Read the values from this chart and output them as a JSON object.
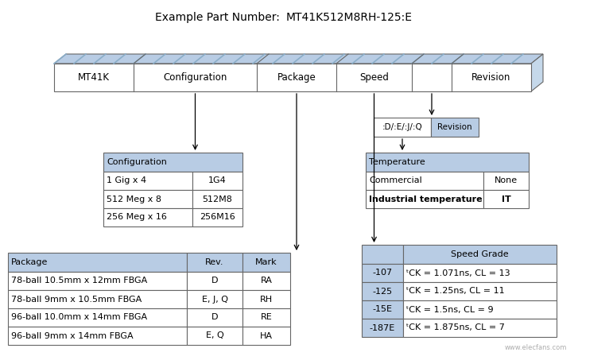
{
  "title_label": "Example Part Number:",
  "title_partnumber": "MT41K512M8RH-125:E",
  "bg_color": "#ffffff",
  "header_bg": "#b8cce4",
  "cell_bg": "#ffffff",
  "border_color": "#666666",
  "main_box_labels": [
    "MT41K",
    "Configuration",
    "Package",
    "Speed",
    "",
    "Revision"
  ],
  "config_table": {
    "header": "Configuration",
    "rows": [
      [
        "1 Gig x 4",
        "1G4"
      ],
      [
        "512 Meg x 8",
        "512M8"
      ],
      [
        "256 Meg x 16",
        "256M16"
      ]
    ]
  },
  "package_table": {
    "headers": [
      "Package",
      "Rev.",
      "Mark"
    ],
    "rows": [
      [
        "78-ball 10.5mm x 12mm FBGA",
        "D",
        "RA"
      ],
      [
        "78-ball 9mm x 10.5mm FBGA",
        "E, J, Q",
        "RH"
      ],
      [
        "96-ball 10.0mm x 14mm FBGA",
        "D",
        "RE"
      ],
      [
        "96-ball 9mm x 14mm FBGA",
        "E, Q",
        "HA"
      ]
    ]
  },
  "speed_table": {
    "header": "Speed Grade",
    "rows": [
      [
        "-107",
        "ᵗCK = 1.071ns, CL = 13"
      ],
      [
        "-125",
        "ᵗCK = 1.25ns, CL = 11"
      ],
      [
        "-15E",
        "ᵗCK = 1.5ns, CL = 9"
      ],
      [
        "-187E",
        "ᵗCK = 1.875ns, CL = 7"
      ]
    ]
  },
  "temp_table": {
    "header": "Temperature",
    "rows": [
      [
        "Commercial",
        "None"
      ],
      [
        "Industrial temperature",
        "IT"
      ]
    ]
  },
  "revision_box": {
    "label1": ":D/:E/:J/:Q",
    "label2": "Revision"
  }
}
